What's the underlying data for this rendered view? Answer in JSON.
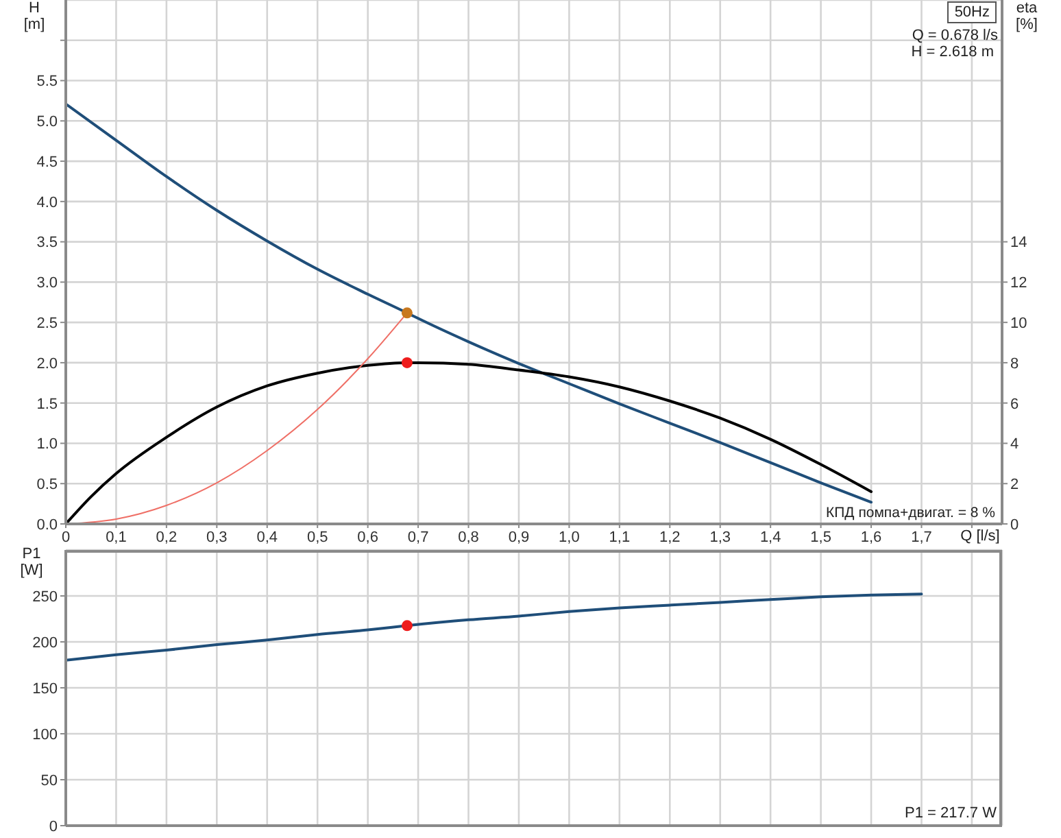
{
  "chart_data": [
    {
      "type": "line",
      "xlabel": "Q [l/s]",
      "ylabel": "H [m]",
      "y2label": "eta [%]",
      "annotations": [
        "50Hz",
        "Q = 0.678 l/s",
        "H = 2.618 m",
        "КПД помпа+двигат. = 8 %"
      ],
      "xlim": [
        0,
        1.86
      ],
      "xticks": [
        0,
        {
          "value": 0.1,
          "label": "0,1"
        },
        {
          "value": 0.2,
          "label": "0,2"
        },
        {
          "value": 0.3,
          "label": "0,3"
        },
        {
          "value": 0.4,
          "label": "0,4"
        },
        {
          "value": 0.5,
          "label": "0,5"
        },
        {
          "value": 0.6,
          "label": "0,6"
        },
        {
          "value": 0.7,
          "label": "0,7"
        },
        {
          "value": 0.8,
          "label": "0,8"
        },
        {
          "value": 0.9,
          "label": "0,9"
        },
        {
          "value": 1,
          "label": "1,0"
        },
        {
          "value": 1.1,
          "label": "1,1"
        },
        {
          "value": 1.2,
          "label": "1,2"
        },
        {
          "value": 1.3,
          "label": "1,3"
        },
        {
          "value": 1.4,
          "label": "1,4"
        },
        {
          "value": 1.5,
          "label": "1,5"
        },
        {
          "value": 1.6,
          "label": "1,6"
        },
        {
          "value": 1.7,
          "label": "1,7"
        },
        {
          "value": 1.8,
          "label": null
        }
      ],
      "ylim": [
        0,
        6.5
      ],
      "yticks": [
        {
          "value": 0,
          "label": "0.0"
        },
        0.5,
        {
          "value": 1,
          "label": "1.0"
        },
        1.5,
        {
          "value": 2,
          "label": "2.0"
        },
        2.5,
        {
          "value": 3,
          "label": "3.0"
        },
        3.5,
        {
          "value": 4,
          "label": "4.0"
        },
        4.5,
        {
          "value": 5,
          "label": "5.0"
        },
        5.5,
        {
          "value": 6,
          "label": null
        }
      ],
      "y2lim": [
        0,
        26
      ],
      "y2ticks": [
        0,
        2,
        4,
        6,
        8,
        10,
        12,
        14
      ],
      "grid": true,
      "series": [
        {
          "color": "#1f4e79",
          "x": [
            0,
            0.1,
            0.2,
            0.3,
            0.4,
            0.5,
            0.6,
            0.678,
            0.7,
            0.8,
            0.9,
            1,
            1.1,
            1.2,
            1.3,
            1.4,
            1.5,
            1.6
          ],
          "values": [
            5.21,
            4.76,
            4.31,
            3.89,
            3.51,
            3.16,
            2.85,
            2.618,
            2.55,
            2.26,
            1.99,
            1.74,
            1.49,
            1.25,
            1.01,
            0.76,
            0.51,
            0.27
          ]
        },
        {
          "axis": "y2",
          "color": "#000000",
          "x": [
            0,
            0.05,
            0.1,
            0.2,
            0.3,
            0.4,
            0.5,
            0.6,
            0.678,
            0.7,
            0.8,
            0.9,
            1,
            1.1,
            1.2,
            1.3,
            1.4,
            1.5,
            1.6
          ],
          "values": [
            0,
            1.35,
            2.5,
            4.3,
            5.8,
            6.85,
            7.48,
            7.87,
            8,
            8,
            7.92,
            7.64,
            7.3,
            6.8,
            6.1,
            5.25,
            4.2,
            2.95,
            1.6
          ]
        },
        {
          "color": "#ef6f66",
          "x": [
            0,
            0.1,
            0.2,
            0.3,
            0.4,
            0.5,
            0.6,
            0.678
          ],
          "values": [
            0,
            0.06,
            0.23,
            0.51,
            0.91,
            1.42,
            2.05,
            2.618
          ]
        },
        {
          "type": "scatter",
          "marker": "circle",
          "color": "#c8781e",
          "x": [
            0.678
          ],
          "values": [
            2.618
          ]
        },
        {
          "type": "scatter",
          "marker": "circle",
          "axis": "y2",
          "color": "#ee1c1c",
          "x": [
            0.678
          ],
          "values": [
            8
          ]
        }
      ]
    },
    {
      "type": "line",
      "ylabel": "P1 [W]",
      "annotations": [
        "P1 = 217.7 W"
      ],
      "tick_labels": "y",
      "xlim": [
        0,
        1.86
      ],
      "xticks": [
        0,
        0.1,
        0.2,
        0.3,
        0.4,
        0.5,
        0.6,
        0.7,
        0.8,
        0.9,
        1,
        1.1,
        1.2,
        1.3,
        1.4,
        1.5,
        1.6,
        1.7,
        1.8
      ],
      "ylim": [
        0,
        300
      ],
      "yticks": [
        0,
        50,
        100,
        150,
        200,
        250
      ],
      "grid": true,
      "series": [
        {
          "color": "#1f4e79",
          "x": [
            0,
            0.1,
            0.2,
            0.3,
            0.4,
            0.5,
            0.6,
            0.678,
            0.8,
            0.9,
            1,
            1.1,
            1.2,
            1.3,
            1.4,
            1.5,
            1.6,
            1.7
          ],
          "values": [
            180,
            186,
            191,
            197,
            202,
            208,
            213,
            217.7,
            224,
            228,
            233,
            237,
            240,
            243,
            246,
            249,
            251,
            252
          ]
        },
        {
          "type": "scatter",
          "marker": "circle",
          "color": "#ee1c1c",
          "x": [
            0.678
          ],
          "values": [
            217.7
          ]
        }
      ]
    }
  ]
}
